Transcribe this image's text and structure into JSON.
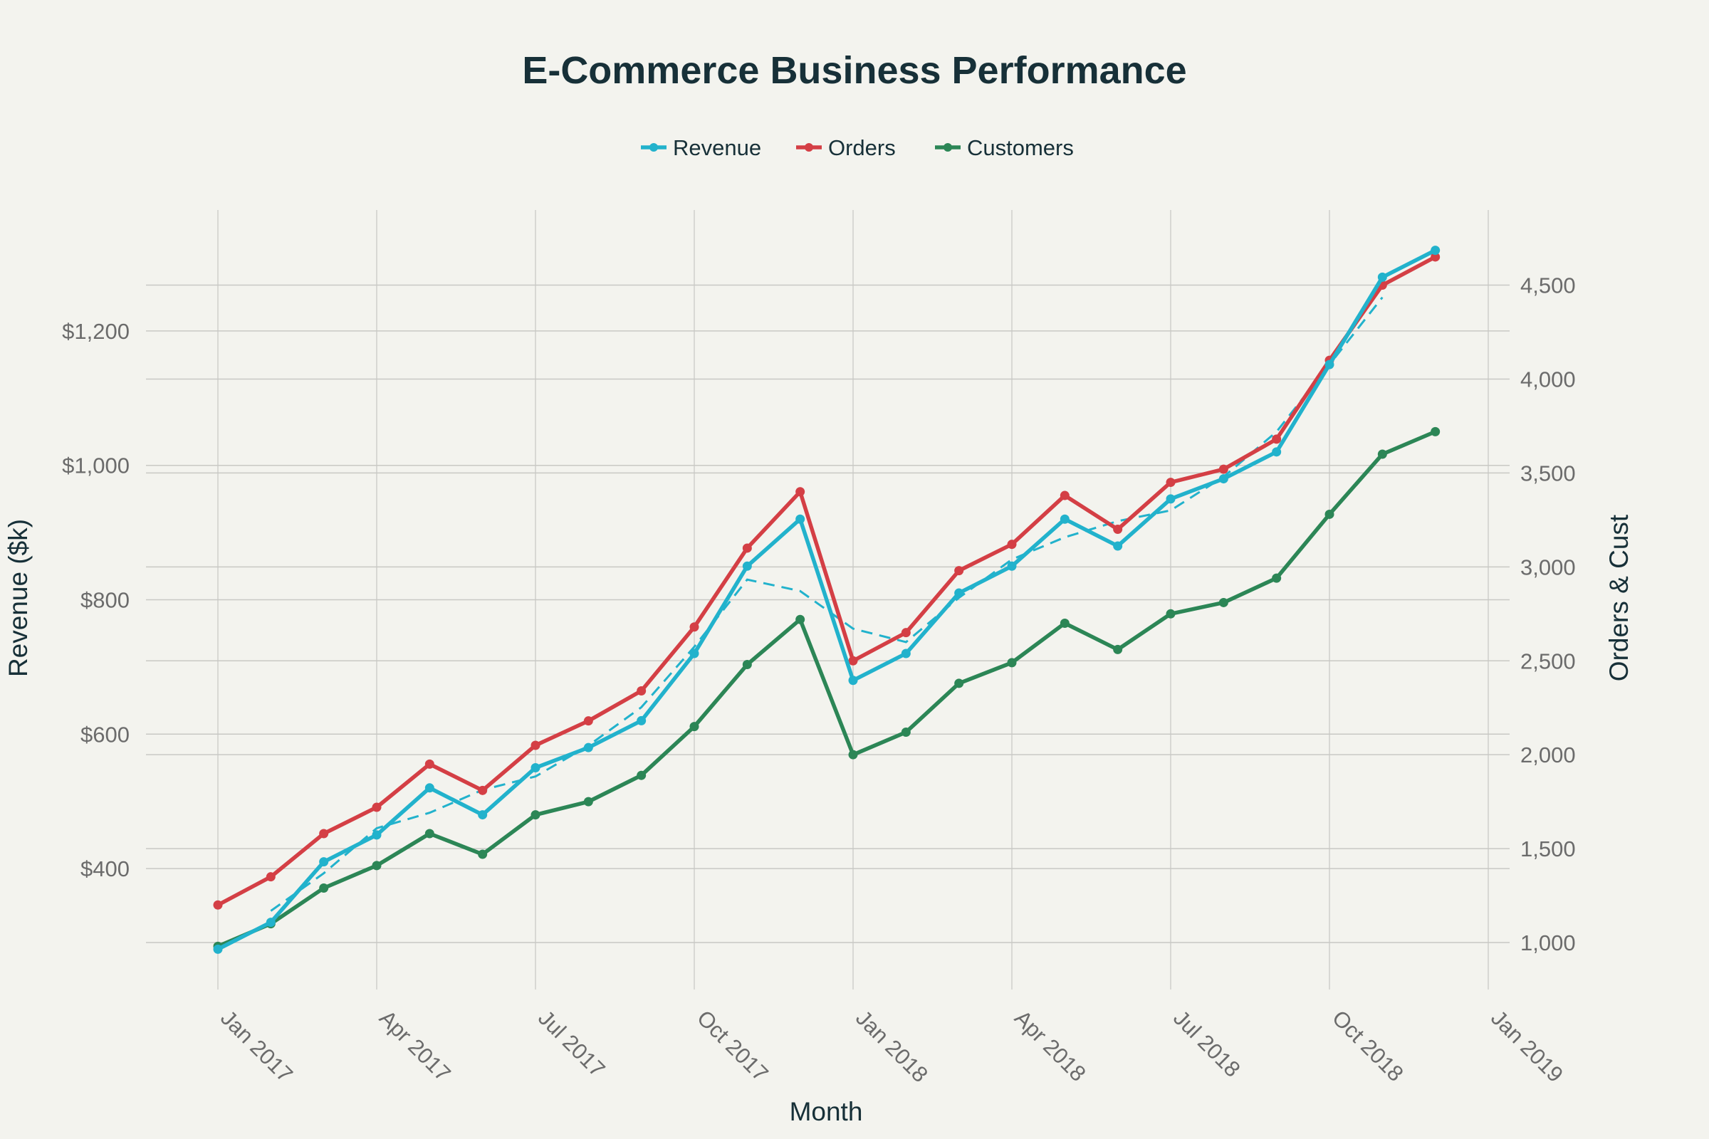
{
  "chart_data": {
    "type": "line",
    "title": "E-Commerce Business Performance",
    "xlabel": "Month",
    "ylabel_left": "Revenue ($k)",
    "ylabel_right": "Orders & Cust",
    "legend_position": "top-center",
    "grid": true,
    "x": [
      "2017-01",
      "2017-02",
      "2017-03",
      "2017-04",
      "2017-05",
      "2017-06",
      "2017-07",
      "2017-08",
      "2017-09",
      "2017-10",
      "2017-11",
      "2017-12",
      "2018-01",
      "2018-02",
      "2018-03",
      "2018-04",
      "2018-05",
      "2018-06",
      "2018-07",
      "2018-08",
      "2018-09",
      "2018-10",
      "2018-11",
      "2018-12"
    ],
    "x_ticks": [
      {
        "date": "2017-01",
        "label": "Jan 2017"
      },
      {
        "date": "2017-04",
        "label": "Apr 2017"
      },
      {
        "date": "2017-07",
        "label": "Jul 2017"
      },
      {
        "date": "2017-10",
        "label": "Oct 2017"
      },
      {
        "date": "2018-01",
        "label": "Jan 2018"
      },
      {
        "date": "2018-04",
        "label": "Apr 2018"
      },
      {
        "date": "2018-07",
        "label": "Jul 2018"
      },
      {
        "date": "2018-10",
        "label": "Oct 2018"
      },
      {
        "date": "2019-01",
        "label": "Jan 2019"
      }
    ],
    "xlim": [
      "2017-01",
      "2019-01"
    ],
    "ylim_left": [
      220,
      1380
    ],
    "ylim_right": [
      750,
      4900
    ],
    "left_ticks": [
      {
        "value": 400,
        "label": "$400"
      },
      {
        "value": 600,
        "label": "$600"
      },
      {
        "value": 800,
        "label": "$800"
      },
      {
        "value": 1000,
        "label": "$1,000"
      },
      {
        "value": 1200,
        "label": "$1,200"
      }
    ],
    "right_ticks": [
      {
        "value": 1000,
        "label": "1,000"
      },
      {
        "value": 1500,
        "label": "1,500"
      },
      {
        "value": 2000,
        "label": "2,000"
      },
      {
        "value": 2500,
        "label": "2,500"
      },
      {
        "value": 3000,
        "label": "3,000"
      },
      {
        "value": 3500,
        "label": "3,500"
      },
      {
        "value": 4000,
        "label": "4,000"
      },
      {
        "value": 4500,
        "label": "4,500"
      }
    ],
    "series": [
      {
        "name": "Revenue",
        "axis": "left",
        "color": "#22b2cc",
        "values": [
          280,
          320,
          410,
          450,
          520,
          480,
          550,
          580,
          620,
          720,
          850,
          920,
          680,
          720,
          810,
          850,
          920,
          880,
          950,
          980,
          1020,
          1150,
          1280,
          1320
        ]
      },
      {
        "name": "Orders",
        "axis": "right",
        "color": "#d43f45",
        "values": [
          1200,
          1350,
          1580,
          1720,
          1950,
          1810,
          2050,
          2180,
          2340,
          2680,
          3100,
          3400,
          2500,
          2650,
          2980,
          3120,
          3380,
          3200,
          3450,
          3520,
          3680,
          4100,
          4500,
          4650
        ]
      },
      {
        "name": "Customers",
        "axis": "right",
        "color": "#2c8656",
        "values": [
          980,
          1100,
          1290,
          1410,
          1580,
          1470,
          1680,
          1750,
          1890,
          2150,
          2480,
          2720,
          2000,
          2120,
          2380,
          2490,
          2700,
          2560,
          2750,
          2810,
          2940,
          3280,
          3600,
          3720
        ]
      }
    ],
    "trend": {
      "series": "Revenue",
      "axis": "left",
      "color": "#22b2cc",
      "style": "dashed",
      "x": [
        "2017-02",
        "2017-03",
        "2017-04",
        "2017-05",
        "2017-06",
        "2017-07",
        "2017-08",
        "2017-09",
        "2017-10",
        "2017-11",
        "2017-12",
        "2018-01",
        "2018-02",
        "2018-03",
        "2018-04",
        "2018-05",
        "2018-06",
        "2018-07",
        "2018-08",
        "2018-09",
        "2018-10",
        "2018-11"
      ],
      "values": [
        337,
        393,
        460,
        483,
        517,
        537,
        583,
        640,
        730,
        830,
        813,
        757,
        737,
        803,
        860,
        893,
        917,
        933,
        983,
        1050,
        1150,
        1250
      ]
    }
  }
}
